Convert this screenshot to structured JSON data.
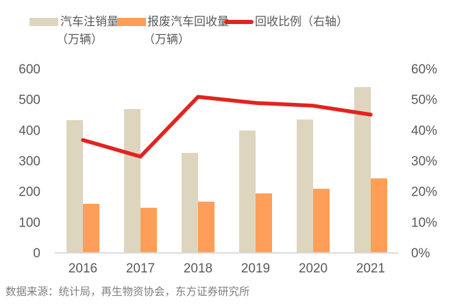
{
  "chart_data": {
    "type": "bar",
    "title": "",
    "categories": [
      "2016",
      "2017",
      "2018",
      "2019",
      "2020",
      "2021"
    ],
    "series": [
      {
        "name": "汽车注销量（万辆）",
        "kind": "bar",
        "axis": "left",
        "color": "#DED5BF",
        "values": [
          432,
          468,
          325,
          398,
          434,
          540
        ]
      },
      {
        "name": "报废汽车回收量（万辆）",
        "kind": "bar",
        "axis": "left",
        "color": "#FF9E58",
        "values": [
          159,
          146,
          166,
          193,
          208,
          242
        ]
      },
      {
        "name": "回收比例（右轴）",
        "kind": "line",
        "axis": "right",
        "color": "#E3231F",
        "values": [
          36.7,
          31.3,
          50.8,
          48.8,
          47.9,
          45.0
        ]
      }
    ],
    "y_left": {
      "ylim": [
        0,
        600
      ],
      "ticks": [
        "0",
        "100",
        "200",
        "300",
        "400",
        "500",
        "600"
      ]
    },
    "y_right": {
      "ylim": [
        0,
        60
      ],
      "ticks": [
        "0%",
        "10%",
        "20%",
        "30%",
        "40%",
        "50%",
        "60%"
      ]
    },
    "xlabel": "",
    "ylabel": "",
    "grid": false,
    "legend_position": "top"
  },
  "legend": [
    {
      "line1": "汽车注销量",
      "line2": "（万辆）"
    },
    {
      "line1": "报废汽车回收量",
      "line2": "（万辆）"
    },
    {
      "line1": "回收比例（右轴）",
      "line2": ""
    }
  ],
  "source": "数据来源：统计局，再生物资协会，东方证券研究所"
}
